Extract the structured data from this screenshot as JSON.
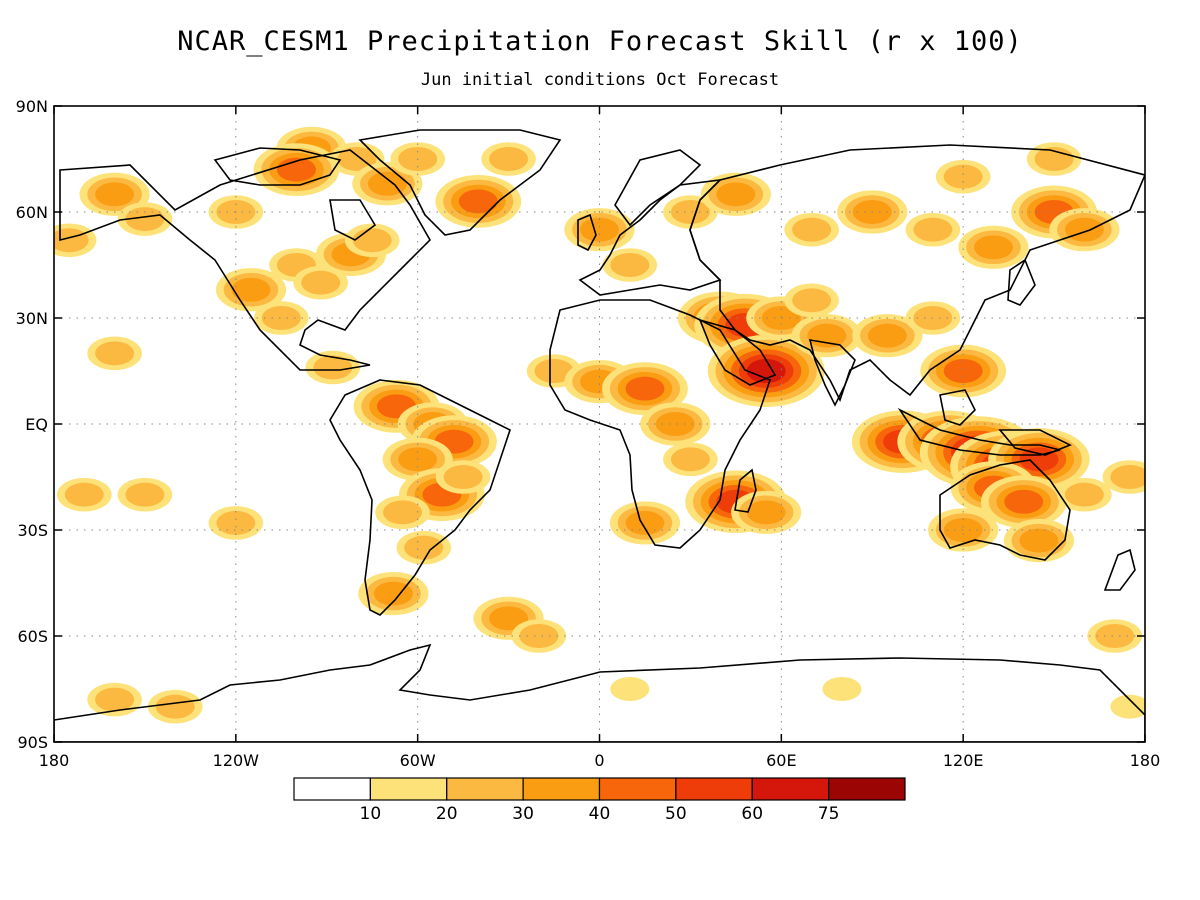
{
  "title": "NCAR_CESM1 Precipitation Forecast Skill (r x 100)",
  "subtitle": "Jun initial conditions  Oct Forecast",
  "colors": {
    "bins": [
      "#ffffff",
      "#fde27a",
      "#fcb941",
      "#fb9d12",
      "#f8660b",
      "#ee3d09",
      "#d4170a",
      "#9b0504"
    ],
    "coast": "#000000",
    "grid": "#888888"
  },
  "axes": {
    "lat_labels": [
      "90N",
      "60N",
      "30N",
      "EQ",
      "30S",
      "60S",
      "90S"
    ],
    "lon_labels": [
      "180",
      "120W",
      "60W",
      "0",
      "60E",
      "120E",
      "180"
    ],
    "lat_range": [
      -90,
      90
    ],
    "lon_range": [
      -180,
      180
    ],
    "grid": true
  },
  "colorbar": {
    "labels": [
      "10",
      "20",
      "30",
      "40",
      "50",
      "60",
      "75"
    ]
  },
  "skill_regions": [
    {
      "lon": -95,
      "lat": 78,
      "level": 3
    },
    {
      "lon": -80,
      "lat": 75,
      "level": 2
    },
    {
      "lon": -100,
      "lat": 72,
      "level": 4
    },
    {
      "lon": -70,
      "lat": 68,
      "level": 3
    },
    {
      "lon": -60,
      "lat": 75,
      "level": 2
    },
    {
      "lon": -40,
      "lat": 63,
      "level": 4
    },
    {
      "lon": -30,
      "lat": 75,
      "level": 2
    },
    {
      "lon": -160,
      "lat": 65,
      "level": 3
    },
    {
      "lon": -150,
      "lat": 58,
      "level": 2
    },
    {
      "lon": -175,
      "lat": 52,
      "level": 2
    },
    {
      "lon": -120,
      "lat": 60,
      "level": 2
    },
    {
      "lon": -100,
      "lat": 45,
      "level": 2
    },
    {
      "lon": -115,
      "lat": 38,
      "level": 3
    },
    {
      "lon": -105,
      "lat": 30,
      "level": 2
    },
    {
      "lon": -82,
      "lat": 48,
      "level": 3
    },
    {
      "lon": -75,
      "lat": 52,
      "level": 2
    },
    {
      "lon": -92,
      "lat": 40,
      "level": 2
    },
    {
      "lon": -88,
      "lat": 16,
      "level": 2
    },
    {
      "lon": -67,
      "lat": 5,
      "level": 4
    },
    {
      "lon": -55,
      "lat": 0,
      "level": 3
    },
    {
      "lon": -48,
      "lat": -5,
      "level": 4
    },
    {
      "lon": -60,
      "lat": -10,
      "level": 3
    },
    {
      "lon": -52,
      "lat": -20,
      "level": 4
    },
    {
      "lon": -65,
      "lat": -25,
      "level": 2
    },
    {
      "lon": -45,
      "lat": -15,
      "level": 2
    },
    {
      "lon": -58,
      "lat": -35,
      "level": 2
    },
    {
      "lon": -68,
      "lat": -48,
      "level": 3
    },
    {
      "lon": -30,
      "lat": -55,
      "level": 3
    },
    {
      "lon": -20,
      "lat": -60,
      "level": 2
    },
    {
      "lon": -160,
      "lat": 20,
      "level": 2
    },
    {
      "lon": -150,
      "lat": -20,
      "level": 2
    },
    {
      "lon": -170,
      "lat": -20,
      "level": 2
    },
    {
      "lon": -120,
      "lat": -28,
      "level": 2
    },
    {
      "lon": -15,
      "lat": 15,
      "level": 2
    },
    {
      "lon": 0,
      "lat": 12,
      "level": 3
    },
    {
      "lon": 15,
      "lat": 10,
      "level": 4
    },
    {
      "lon": 25,
      "lat": 0,
      "level": 3
    },
    {
      "lon": 30,
      "lat": -10,
      "level": 2
    },
    {
      "lon": 15,
      "lat": -28,
      "level": 3
    },
    {
      "lon": 45,
      "lat": -22,
      "level": 5
    },
    {
      "lon": 55,
      "lat": -25,
      "level": 3
    },
    {
      "lon": 40,
      "lat": 30,
      "level": 4
    },
    {
      "lon": 48,
      "lat": 28,
      "level": 5
    },
    {
      "lon": 55,
      "lat": 15,
      "level": 6
    },
    {
      "lon": 60,
      "lat": 30,
      "level": 3
    },
    {
      "lon": 75,
      "lat": 25,
      "level": 3
    },
    {
      "lon": 70,
      "lat": 35,
      "level": 2
    },
    {
      "lon": 10,
      "lat": 45,
      "level": 2
    },
    {
      "lon": 0,
      "lat": 55,
      "level": 3
    },
    {
      "lon": 30,
      "lat": 60,
      "level": 2
    },
    {
      "lon": 45,
      "lat": 65,
      "level": 3
    },
    {
      "lon": 70,
      "lat": 55,
      "level": 2
    },
    {
      "lon": 90,
      "lat": 60,
      "level": 3
    },
    {
      "lon": 110,
      "lat": 55,
      "level": 2
    },
    {
      "lon": 130,
      "lat": 50,
      "level": 3
    },
    {
      "lon": 150,
      "lat": 60,
      "level": 4
    },
    {
      "lon": 160,
      "lat": 55,
      "level": 3
    },
    {
      "lon": 120,
      "lat": 70,
      "level": 2
    },
    {
      "lon": 150,
      "lat": 75,
      "level": 2
    },
    {
      "lon": 95,
      "lat": 25,
      "level": 3
    },
    {
      "lon": 110,
      "lat": 30,
      "level": 2
    },
    {
      "lon": 120,
      "lat": 15,
      "level": 4
    },
    {
      "lon": 100,
      "lat": -5,
      "level": 5
    },
    {
      "lon": 115,
      "lat": -5,
      "level": 5
    },
    {
      "lon": 125,
      "lat": -8,
      "level": 6
    },
    {
      "lon": 135,
      "lat": -12,
      "level": 6
    },
    {
      "lon": 145,
      "lat": -10,
      "level": 5
    },
    {
      "lon": 130,
      "lat": -18,
      "level": 4
    },
    {
      "lon": 140,
      "lat": -22,
      "level": 4
    },
    {
      "lon": 120,
      "lat": -30,
      "level": 3
    },
    {
      "lon": 145,
      "lat": -33,
      "level": 3
    },
    {
      "lon": 160,
      "lat": -20,
      "level": 2
    },
    {
      "lon": 175,
      "lat": -15,
      "level": 2
    },
    {
      "lon": 170,
      "lat": -60,
      "level": 2
    },
    {
      "lon": -140,
      "lat": -80,
      "level": 2
    },
    {
      "lon": -160,
      "lat": -78,
      "level": 2
    },
    {
      "lon": 80,
      "lat": -75,
      "level": 1
    },
    {
      "lon": 10,
      "lat": -75,
      "level": 1
    },
    {
      "lon": 175,
      "lat": -80,
      "level": 1
    }
  ]
}
